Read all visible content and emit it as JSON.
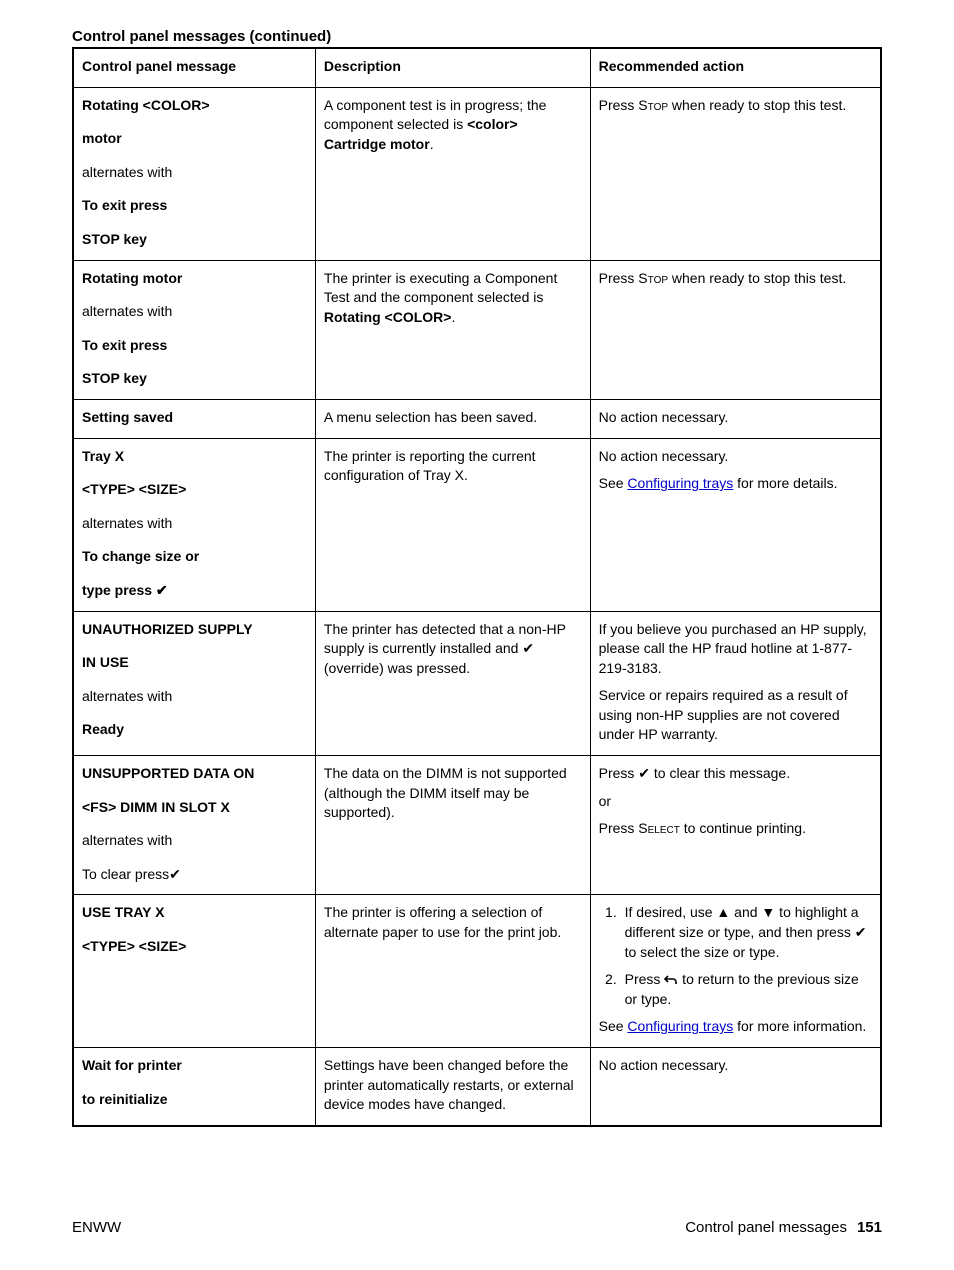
{
  "caption": "Control panel messages (continued)",
  "headers": {
    "col1": "Control panel message",
    "col2": "Description",
    "col3": "Recommended action"
  },
  "glyphs": {
    "check": "✔",
    "up": "▲",
    "down": "▼",
    "back": "⮌"
  },
  "footer": {
    "left": "ENWW",
    "right_text": "Control panel messages",
    "page": "151"
  },
  "rows": [
    {
      "msg": [
        {
          "t": "Rotating <COLOR>",
          "b": true
        },
        {
          "t": "motor",
          "b": true
        },
        {
          "t": "alternates with",
          "b": false
        },
        {
          "t": "To exit press",
          "b": true
        },
        {
          "t": "STOP key",
          "b": true
        }
      ],
      "desc_html": "A component test is in progress; the component selected is <span class=\"b\">&lt;color&gt; Cartridge motor</span>.",
      "action_html": "Press <span class=\"smallcaps\">Stop</span> when ready to stop this test."
    },
    {
      "msg": [
        {
          "t": "Rotating motor",
          "b": true
        },
        {
          "t": "alternates with",
          "b": false
        },
        {
          "t": "To exit press",
          "b": true
        },
        {
          "t": "STOP key",
          "b": true
        }
      ],
      "desc_html": "The printer is executing a Component Test and the component selected is <span class=\"b\">Rotating &lt;COLOR&gt;</span>.",
      "action_html": "Press <span class=\"smallcaps\">Stop</span> when ready to stop this test."
    },
    {
      "msg": [
        {
          "t": "Setting saved",
          "b": true
        }
      ],
      "desc_html": "A menu selection has been saved.",
      "action_html": "No action necessary."
    },
    {
      "msg": [
        {
          "t": "Tray X",
          "b": true
        },
        {
          "t": "<TYPE> <SIZE>",
          "b": true
        },
        {
          "t": "alternates with",
          "b": false
        },
        {
          "t": "To change size or",
          "b": true
        },
        {
          "t": "type press ✔",
          "b": true
        }
      ],
      "desc_html": "The printer is reporting the current configuration of Tray X.",
      "action_html": "<p>No action necessary.</p><p>See <a class=\"link\" data-name=\"configuring-trays-link\" data-interactable=\"true\">Configuring trays</a> for more details.</p>"
    },
    {
      "msg": [
        {
          "t": "UNAUTHORIZED SUPPLY",
          "b": true
        },
        {
          "t": "IN USE",
          "b": true
        },
        {
          "t": "alternates with",
          "b": false
        },
        {
          "t": "Ready",
          "b": true
        }
      ],
      "desc_html": "The printer has detected that a non-HP supply is currently installed and ✔ (override) was pressed.",
      "action_html": "<p>If you believe you purchased an HP supply, please call the HP fraud hotline at 1-877-219-3183.</p><p>Service or repairs required as a result of using non-HP supplies are not covered under HP warranty.</p>"
    },
    {
      "msg": [
        {
          "t": "UNSUPPORTED DATA ON",
          "b": true
        },
        {
          "t": "<FS> DIMM IN SLOT X",
          "b": true
        },
        {
          "t": "alternates with",
          "b": false
        },
        {
          "t": "To clear press✔",
          "b": false
        }
      ],
      "desc_html": "The data on the DIMM is not supported (although the DIMM itself may be supported).",
      "action_html": "<p>Press ✔ to clear this message.</p><p>or</p><p>Press <span class=\"smallcaps\">Select</span> to continue printing.</p>"
    },
    {
      "msg": [
        {
          "t": "USE TRAY X",
          "b": true
        },
        {
          "t": "<TYPE> <SIZE>",
          "b": true
        }
      ],
      "desc_html": "The printer is offering a selection of alternate paper to use for the print job.",
      "action_html": "<ol class=\"steps\"><li>If desired, use ▲ and ▼ to highlight a different size or type, and then press ✔ to select the size or type.</li><li>Press <svg class=\"icon-svg\" data-name=\"back-arrow-icon\" data-interactable=\"false\" width=\"14\" height=\"12\" viewBox=\"0 0 14 12\"><path d=\"M4 2 L1 5 L4 8\" stroke=\"#000\" stroke-width=\"1.6\" fill=\"none\"/><path d=\"M1 5 H9 A3 3 0 0 1 12 8 V10\" stroke=\"#000\" stroke-width=\"1.6\" fill=\"none\"/></svg> to return to the previous size or type.</li></ol><p>See <a class=\"link\" data-name=\"configuring-trays-link\" data-interactable=\"true\">Configuring trays</a> for more information.</p>"
    },
    {
      "msg": [
        {
          "t": "Wait for printer",
          "b": true
        },
        {
          "t": "to reinitialize",
          "b": true
        }
      ],
      "desc_html": "Settings have been changed before the printer automatically restarts, or external device modes have changed.",
      "action_html": "No action necessary."
    }
  ]
}
